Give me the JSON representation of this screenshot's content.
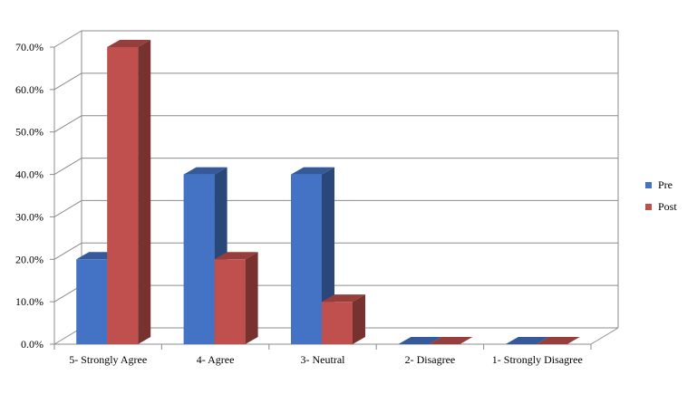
{
  "chart_data": {
    "type": "bar",
    "categories": [
      "5- Strongly Agree",
      "4- Agree",
      "3- Neutral",
      "2- Disagree",
      "1- Strongly Disagree"
    ],
    "series": [
      {
        "name": "Pre",
        "values": [
          20,
          40,
          40,
          0,
          0
        ],
        "color": "#4472c4"
      },
      {
        "name": "Post",
        "values": [
          70,
          20,
          10,
          0,
          0
        ],
        "color": "#c0504d"
      }
    ],
    "yticks": [
      "0.0%",
      "10.0%",
      "20.0%",
      "30.0%",
      "40.0%",
      "50.0%",
      "60.0%",
      "70.0%"
    ],
    "ylim": [
      0,
      70
    ],
    "grid": true,
    "legend_position": "right",
    "style": "3d-clustered-column"
  }
}
